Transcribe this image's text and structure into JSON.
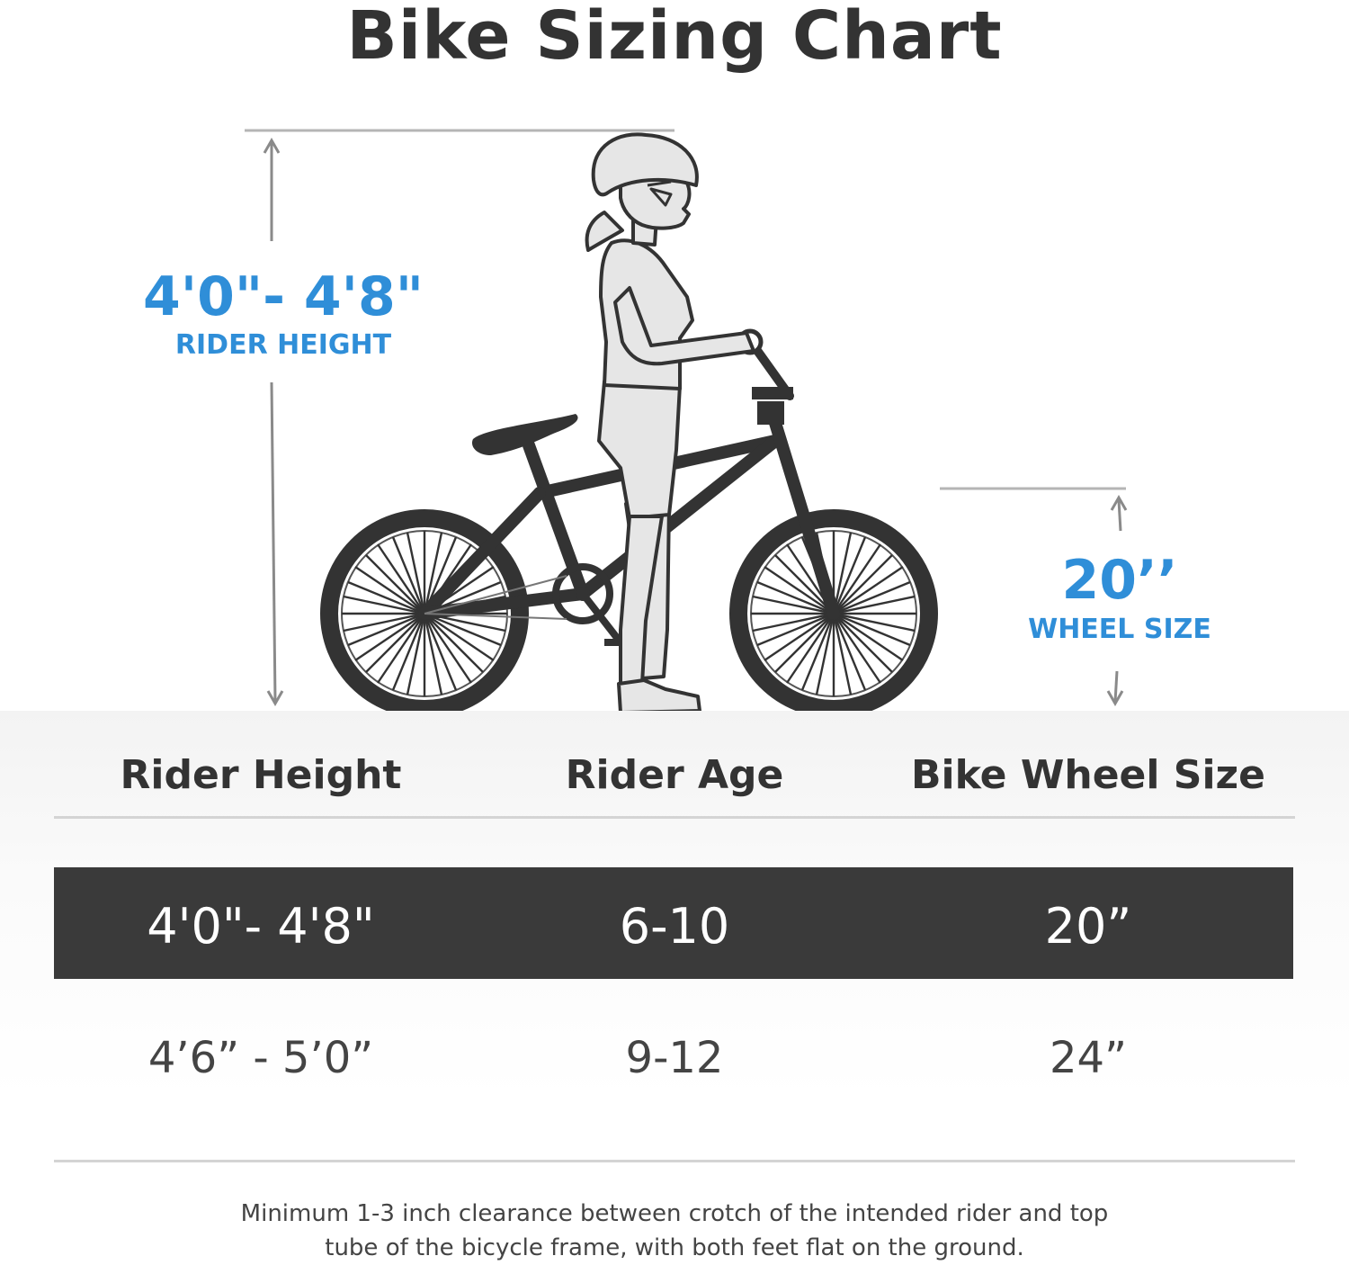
{
  "title": "Bike Sizing Chart",
  "rider_height_measure": {
    "value": "4'0\"- 4'8\"",
    "label": "RIDER HEIGHT"
  },
  "wheel_size_measure": {
    "value": "20’’",
    "label": "WHEEL SIZE"
  },
  "colors": {
    "accent": "#2f8ed8",
    "dark_row": "#3a3a3a",
    "text": "#333333"
  },
  "icons": [
    "rider-figure-icon",
    "bmx-bike-icon",
    "height-arrow-icon",
    "wheel-size-arrow-icon"
  ],
  "table": {
    "headers": [
      "Rider Height",
      "Rider Age",
      "Bike Wheel Size"
    ],
    "rows": [
      {
        "height": "4'0\"- 4'8\"",
        "age": "6-10",
        "wheel": "20”",
        "highlighted": true
      },
      {
        "height": "4’6”  - 5’0”",
        "age": "9-12",
        "wheel": "24”",
        "highlighted": false
      }
    ]
  },
  "footnote": {
    "line1": "Minimum 1-3 inch clearance between crotch of the intended rider and top",
    "line2": "tube of the bicycle frame, with both feet flat on the ground."
  }
}
